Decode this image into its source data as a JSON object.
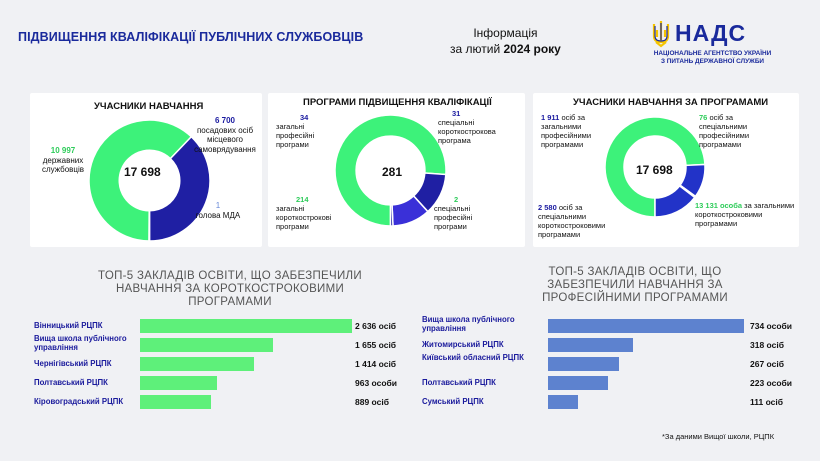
{
  "header": {
    "title": "ПІДВИЩЕННЯ КВАЛІФІКАЦІЇ ПУБЛІЧНИХ СЛУЖБОВЦІВ",
    "info_line1": "Інформація",
    "info_prefix": "за лютий ",
    "info_year": "2024 року",
    "logo_text": "НАДС",
    "logo_sub1": "НАЦІОНАЛЬНЕ АГЕНТСТВО УКРАЇНИ",
    "logo_sub2": "З ПИТАНЬ ДЕРЖАВНОЇ СЛУЖБИ"
  },
  "colors": {
    "green": "#3df27a",
    "navy": "#1f1fa3",
    "blue": "#2233c8",
    "bar_blue": "#5d82cf",
    "bar_green": "#5ef07a"
  },
  "footnote": "*За даними Вищої школи, РЦПК",
  "chart_data": [
    {
      "type": "pie",
      "title": "УЧАСНИКИ НАВЧАННЯ",
      "center": "17 698",
      "slices": [
        {
          "value": 10997,
          "display": "10 997",
          "label": "державних службовців",
          "color": "#3df27a"
        },
        {
          "value": 6700,
          "display": "6 700",
          "label": "посадових осіб місцевого самоврядування",
          "color": "#1f1fa3"
        },
        {
          "value": 1,
          "display": "1",
          "label": "голова МДА",
          "color": "#1f1fa3"
        }
      ]
    },
    {
      "type": "pie",
      "title": "ПРОГРАМИ ПІДВИЩЕННЯ КВАЛІФІКАЦІЇ",
      "center": "281",
      "slices": [
        {
          "value": 214,
          "display": "214",
          "label": "загальні короткострокові програми",
          "color": "#3df27a"
        },
        {
          "value": 34,
          "display": "34",
          "label": "загальні професійні програми",
          "color": "#1f1fa3"
        },
        {
          "value": 31,
          "display": "31",
          "label": "спеціальні короткострокова програма",
          "color": "#3a30d8"
        },
        {
          "value": 2,
          "display": "2",
          "label": "спеціальні професійні програми",
          "color": "#1f1fa3"
        }
      ]
    },
    {
      "type": "pie",
      "title": "УЧАСНИКИ НАВЧАННЯ ЗА ПРОГРАМАМИ",
      "center": "17 698",
      "slices": [
        {
          "value": 13131,
          "display": "13 131 особа",
          "label": "за загальними короткостроковими програмами",
          "color": "#3df27a"
        },
        {
          "value": 1911,
          "display": "1 911",
          "label": "осіб за загальними професійними програмами",
          "color": "#2233c8"
        },
        {
          "value": 76,
          "display": "76",
          "label": "осіб за спеціальними професійними програмами",
          "color": "#1f1fa3"
        },
        {
          "value": 2580,
          "display": "2 580",
          "label": "осіб за спеціальними короткостроковими програмами",
          "color": "#2233c8"
        }
      ]
    },
    {
      "type": "bar",
      "title": "ТОП-5 ЗАКЛАДІВ ОСВІТИ, ЩО ЗАБЕЗПЕЧИЛИ НАВЧАННЯ ЗА КОРОТКОСТРОКОВИМИ ПРОГРАМАМИ",
      "title_lines": [
        "ТОП-5 ЗАКЛАДІВ ОСВІТИ, ЩО ЗАБЕЗПЕЧИЛИ",
        "НАВЧАННЯ ЗА КОРОТКОСТРОКОВИМИ",
        "ПРОГРАМАМИ"
      ],
      "categories": [
        "Вінницький РЦПК",
        "Вища школа публічного управління",
        "Чернігівський РЦПК",
        "Полтавський РЦПК",
        "Кіровоградський РЦПК"
      ],
      "values": [
        2636,
        1655,
        1414,
        963,
        889
      ],
      "value_labels": [
        "2 636 осіб",
        "1 655 осіб",
        "1 414 осіб",
        "963 особи",
        "889 осіб"
      ],
      "color": "#5ef07a"
    },
    {
      "type": "bar",
      "title": "ТОП-5 ЗАКЛАДІВ ОСВІТИ, ЩО ЗАБЕЗПЕЧИЛИ НАВЧАННЯ ЗА ПРОФЕСІЙНИМИ ПРОГРАМАМИ",
      "title_lines": [
        "ТОП-5 ЗАКЛАДІВ ОСВІТИ, ЩО",
        "ЗАБЕЗПЕЧИЛИ НАВЧАННЯ ЗА",
        "ПРОФЕСІЙНИМИ ПРОГРАМАМИ"
      ],
      "categories": [
        "Вища школа публічного управління",
        "Житомирський РЦПК",
        "Київський обласний РЦПК",
        "Полтавський РЦПК",
        "Сумський РЦПК"
      ],
      "values": [
        734,
        318,
        267,
        223,
        111
      ],
      "value_labels": [
        "734 особи",
        "318 осіб",
        "267 осіб",
        "223 особи",
        "111 осіб"
      ],
      "color": "#5d82cf"
    }
  ]
}
